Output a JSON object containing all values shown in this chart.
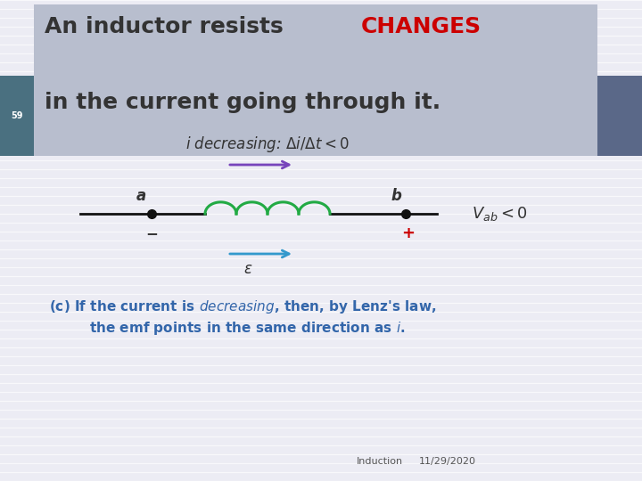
{
  "bg_color": "#ececf4",
  "header_bg": "#b8bece",
  "header_text_black": "An inductor resists ",
  "header_text_red": "CHANGES",
  "header_text_black2": "in the current going through it.",
  "slide_number": "59",
  "slide_num_bg": "#4a7080",
  "right_accent_bg": "#5a6888",
  "footer_left": "Induction",
  "footer_right": "11/29/2020",
  "circuit_label_a": "a",
  "circuit_label_b": "b",
  "emf_label": "ε",
  "minus_label": "−",
  "plus_label": "+",
  "text_color_dark": "#333333",
  "text_color_blue": "#3366aa",
  "text_color_red": "#cc0000",
  "coil_color": "#22aa44",
  "arrow_purple": "#7744bb",
  "arrow_blue": "#3399cc",
  "line_color": "#111111",
  "dot_color": "#111111",
  "stripe_color": "#ffffff",
  "header_line1_fontsize": 18,
  "header_line2_fontsize": 18,
  "circuit_fontsize": 11,
  "lenz_fontsize": 11,
  "footer_fontsize": 8
}
